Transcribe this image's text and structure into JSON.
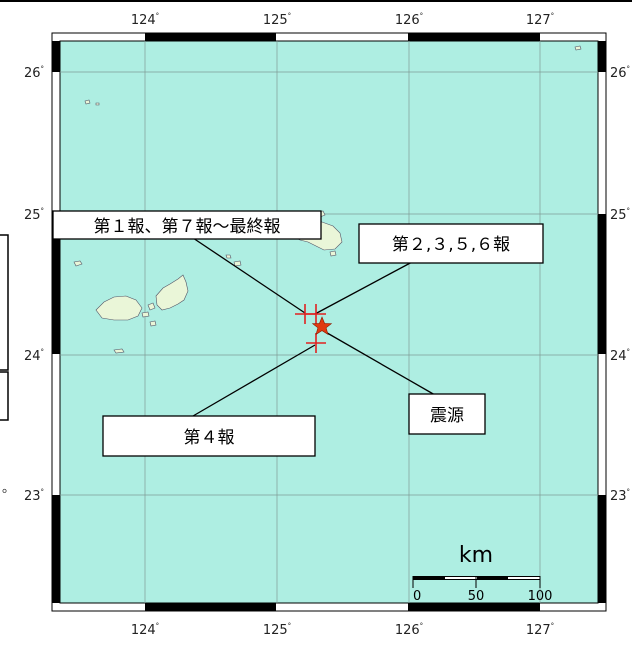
{
  "map": {
    "lon_ticks": [
      "124",
      "125",
      "126",
      "127"
    ],
    "lat_ticks": [
      "26",
      "25",
      "24",
      "23"
    ],
    "degree_symbol": "°",
    "colors": {
      "sea": "#aeeee2",
      "land": "#eaf6d8",
      "grid": "#7f9b96",
      "marker": "#e02020",
      "epicenter": "#e03a10"
    },
    "callouts": {
      "report_1_7_final": "第１報、第７報〜最終報",
      "report_2356": "第２,３,５,６報",
      "report_4": "第４報",
      "epicenter": "震源"
    },
    "scale": {
      "unit": "km",
      "labels": [
        "0",
        "50",
        "100"
      ]
    },
    "left_edge_mark": "。",
    "markers": [
      {
        "name": "report-1-7-final",
        "lon": 125.2,
        "lat": 24.3
      },
      {
        "name": "report-2356",
        "lon": 125.27,
        "lat": 24.3
      },
      {
        "name": "report-4",
        "lon": 125.27,
        "lat": 24.1
      }
    ],
    "epicenter_pos": {
      "lon": 125.33,
      "lat": 24.22
    }
  }
}
